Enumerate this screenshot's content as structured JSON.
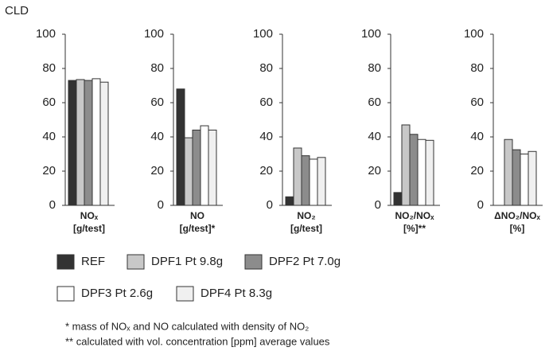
{
  "chart_data": {
    "type": "bar",
    "ylabel": "CLD",
    "categories": [
      "NOₓ",
      "NO",
      "NO₂",
      "NO₂/NOₓ",
      "ΔNO₂/NOₓ"
    ],
    "category_units": [
      "[g/test]",
      "[g/test]*",
      "[g/test]",
      "[%]**",
      "[%]"
    ],
    "series": [
      {
        "name": "REF",
        "color": "#333333",
        "values": [
          73,
          68,
          5,
          7.5,
          null
        ]
      },
      {
        "name": "DPF1 Pt 9.8g",
        "color": "#c8c8c8",
        "values": [
          73.5,
          39.5,
          33.5,
          47,
          38.5
        ]
      },
      {
        "name": "DPF2 Pt 7.0g",
        "color": "#8c8c8c",
        "values": [
          73,
          44,
          29,
          41.5,
          32.5
        ]
      },
      {
        "name": "DPF3 Pt 2.6g",
        "color": "#ffffff",
        "values": [
          74,
          46.5,
          27,
          38.5,
          30
        ]
      },
      {
        "name": "DPF4 Pt 8.3g",
        "color": "#f0f0f0",
        "values": [
          72,
          44,
          28,
          38,
          31.5
        ]
      }
    ],
    "ylim": [
      0,
      100
    ],
    "yticks": [
      0,
      20,
      40,
      60,
      80,
      100
    ],
    "footnotes": [
      "* mass of NOₓ and NO calculated with density of NO₂",
      "** calculated with vol. concentration [ppm] average values"
    ]
  }
}
